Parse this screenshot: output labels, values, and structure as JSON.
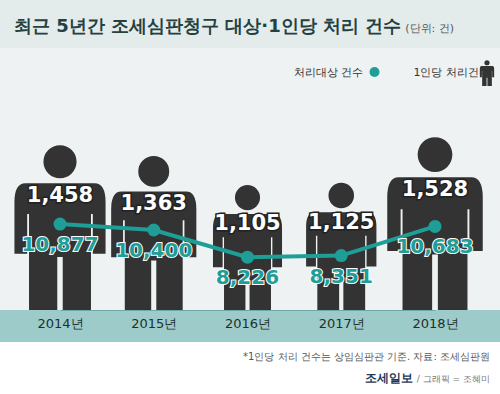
{
  "chart_data": {
    "type": "line",
    "title": "최근 5년간 조세심판청구 대상·1인당 처리 건수",
    "subtitle": "(단위: 건)",
    "categories": [
      "2014년",
      "2015년",
      "2016년",
      "2017년",
      "2018년"
    ],
    "series": [
      {
        "name": "처리대상 건수",
        "type": "line",
        "color": "#1f9e98",
        "marker": "circle",
        "values": [
          10877,
          10400,
          8226,
          8351,
          10683
        ],
        "value_labels": [
          "10,877",
          "10,400",
          "8,226",
          "8,351",
          "10,683"
        ]
      },
      {
        "name": "1인당 처리건수",
        "type": "bar",
        "axis": "y2",
        "color": "#333333",
        "marker": "person",
        "values": [
          1458,
          1363,
          1105,
          1125,
          1528
        ],
        "value_labels": [
          "1,458",
          "1,363",
          "1,105",
          "1,125",
          "1,528"
        ]
      }
    ],
    "ylim": [
      4000,
      24000
    ],
    "y2lim": [
      0,
      2200
    ],
    "data_labels": true,
    "tick_labels": "x",
    "legend": "top right",
    "annotations": [
      "*1인당 처리 건수는 상임심판관 기준. 자료: 조세심판원",
      "조세일보",
      "/ 그래픽 = 조혜미"
    ]
  }
}
